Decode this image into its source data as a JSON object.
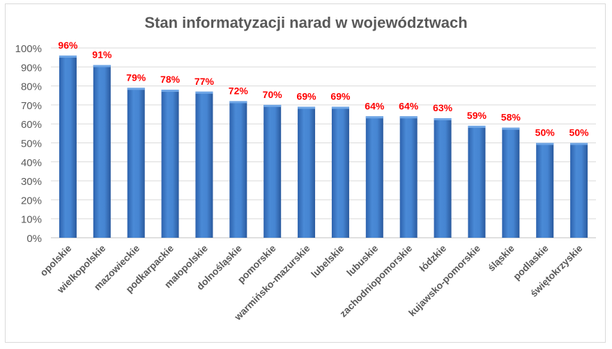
{
  "chart_data": {
    "type": "bar",
    "title": "Stan informatyzacji narad w województwach",
    "categories": [
      "opolskie",
      "wielkopolskie",
      "mazowieckie",
      "podkarpackie",
      "małopolskie",
      "dolnośląskie",
      "pomorskie",
      "warmińsko-mazurskie",
      "lubelskie",
      "lubuskie",
      "zachodniopomorskie",
      "łódzkie",
      "kujawsko-pomorskie",
      "śląskie",
      "podlaskie",
      "świętokrzyskie"
    ],
    "values": [
      96,
      91,
      79,
      78,
      77,
      72,
      70,
      69,
      69,
      64,
      64,
      63,
      59,
      58,
      50,
      50
    ],
    "data_labels": [
      "96%",
      "91%",
      "79%",
      "78%",
      "77%",
      "72%",
      "70%",
      "69%",
      "69%",
      "64%",
      "64%",
      "63%",
      "59%",
      "58%",
      "50%",
      "50%"
    ],
    "yticks": [
      "0%",
      "10%",
      "20%",
      "30%",
      "40%",
      "50%",
      "60%",
      "70%",
      "80%",
      "90%",
      "100%"
    ],
    "ylim": [
      0,
      100
    ],
    "grid": true,
    "legend": "none",
    "colors": {
      "bar": "#3f7fd0",
      "bar_dark": "#2a5a9e",
      "label": "#ff0000",
      "grid": "#d9d9d9",
      "text": "#595959"
    }
  }
}
